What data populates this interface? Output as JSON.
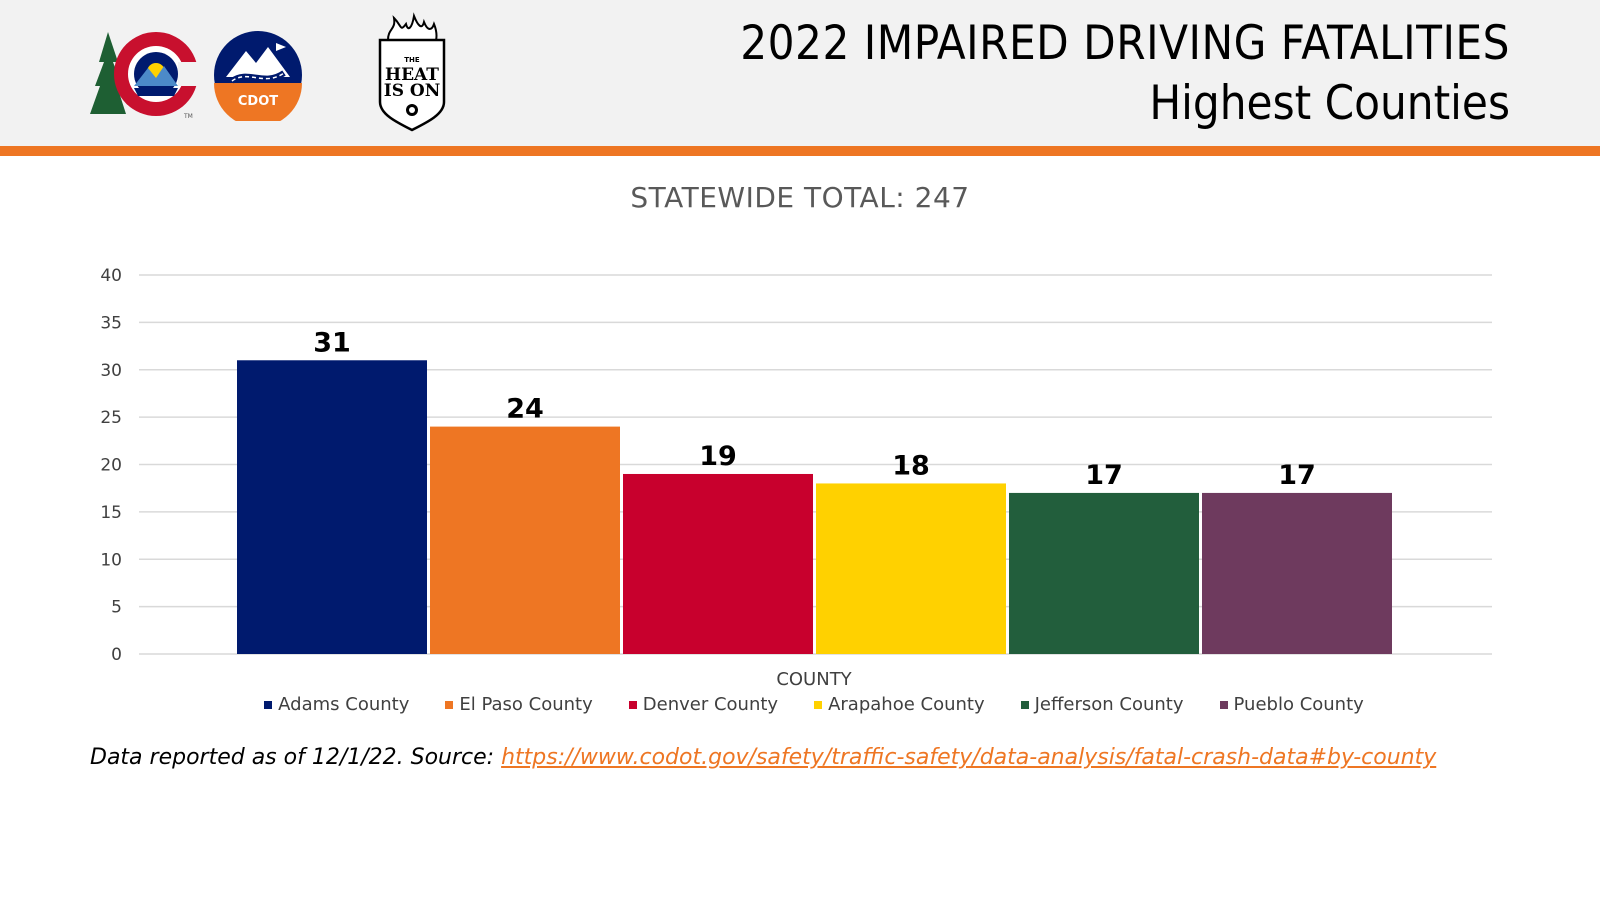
{
  "header": {
    "title_line1": "2022 IMPAIRED DRIVING FATALITIES",
    "title_line2": "Highest Counties",
    "logos": {
      "colorado": {
        "icon": "colorado-c-logo-icon",
        "tm": "TM"
      },
      "cdot": {
        "icon": "cdot-logo-icon",
        "text": "CDOT"
      },
      "heat": {
        "icon": "heat-is-on-badge-icon",
        "line1": "THE",
        "line2": "HEAT",
        "line3": "IS ON"
      }
    }
  },
  "colors": {
    "accent": "#ee7623",
    "header_bg": "#f2f2f2"
  },
  "chart_data": {
    "type": "bar",
    "title": "STATEWIDE TOTAL: 247",
    "xlabel": "COUNTY",
    "ylabel": "",
    "ylim": [
      0,
      40
    ],
    "yticks": [
      0,
      5,
      10,
      15,
      20,
      25,
      30,
      35,
      40
    ],
    "grid": true,
    "legend_position": "bottom",
    "series": [
      {
        "name": "Adams County",
        "value": 31,
        "color": "#001a6e"
      },
      {
        "name": "El Paso County",
        "value": 24,
        "color": "#ee7623"
      },
      {
        "name": "Denver County",
        "value": 19,
        "color": "#c8002d"
      },
      {
        "name": "Arapahoe County",
        "value": 18,
        "color": "#ffd100"
      },
      {
        "name": "Jefferson County",
        "value": 17,
        "color": "#225e3c"
      },
      {
        "name": "Pueblo County",
        "value": 17,
        "color": "#6e3a5e"
      }
    ]
  },
  "footer": {
    "note_prefix": "Data reported as of 12/1/22. Source: ",
    "link_text": "https://www.codot.gov/safety/traffic-safety/data-analysis/fatal-crash-data#by-county"
  }
}
